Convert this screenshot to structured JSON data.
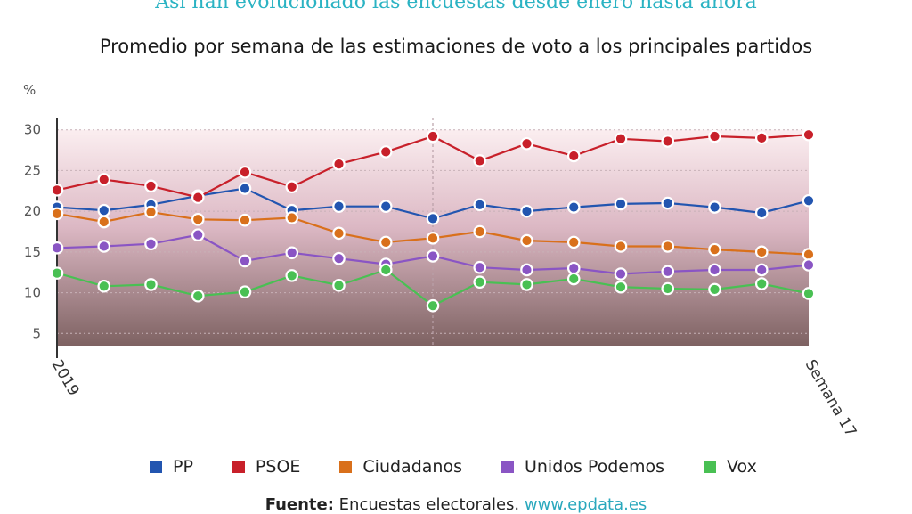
{
  "headline": "Así han evolucionado las encuestas desde enero hasta ahora",
  "source": {
    "label": "Fuente:",
    "text": "Encuestas electorales.",
    "link": "www.epdata.es"
  },
  "chart_data": {
    "type": "line",
    "title": "Promedio por semana de las estimaciones de voto a los principales partidos",
    "ylabel": "%",
    "ylim": [
      3.5,
      31.5
    ],
    "yticks": [
      5,
      10,
      15,
      20,
      25,
      30
    ],
    "x_range": [
      1,
      17
    ],
    "x_first_label": "2019",
    "x_last_label": "Semana 17",
    "grid": true,
    "legend_position": "bottom",
    "x": [
      1,
      2,
      3,
      4,
      5,
      6,
      7,
      8,
      9,
      10,
      11,
      12,
      13,
      14,
      15,
      16,
      17
    ],
    "series": [
      {
        "name": "PP",
        "color": "#2255b0",
        "values": [
          20.5,
          20.1,
          20.8,
          21.9,
          22.8,
          20.1,
          20.6,
          20.6,
          19.1,
          20.8,
          20.0,
          20.5,
          20.9,
          21.0,
          20.5,
          19.8,
          21.3
        ]
      },
      {
        "name": "PSOE",
        "color": "#c8202a",
        "values": [
          22.6,
          23.9,
          23.1,
          21.7,
          24.8,
          23.0,
          25.8,
          27.3,
          29.2,
          26.2,
          28.3,
          26.8,
          28.9,
          28.6,
          29.2,
          29.0,
          29.4
        ]
      },
      {
        "name": "Ciudadanos",
        "color": "#d9701b",
        "values": [
          19.7,
          18.7,
          19.9,
          19.0,
          18.9,
          19.2,
          17.3,
          16.2,
          16.7,
          17.5,
          16.4,
          16.2,
          15.7,
          15.7,
          15.3,
          15.0,
          14.7
        ]
      },
      {
        "name": "Unidos Podemos",
        "color": "#8a55c4",
        "values": [
          15.5,
          15.7,
          16.0,
          17.1,
          13.9,
          14.9,
          14.2,
          13.5,
          14.5,
          13.1,
          12.8,
          13.0,
          12.3,
          12.6,
          12.8,
          12.8,
          13.4
        ]
      },
      {
        "name": "Vox",
        "color": "#49c053",
        "values": [
          12.4,
          10.8,
          11.0,
          9.6,
          10.1,
          12.1,
          10.9,
          12.8,
          8.4,
          11.3,
          11.0,
          11.7,
          10.7,
          10.5,
          10.4,
          11.1,
          9.9
        ]
      }
    ]
  }
}
